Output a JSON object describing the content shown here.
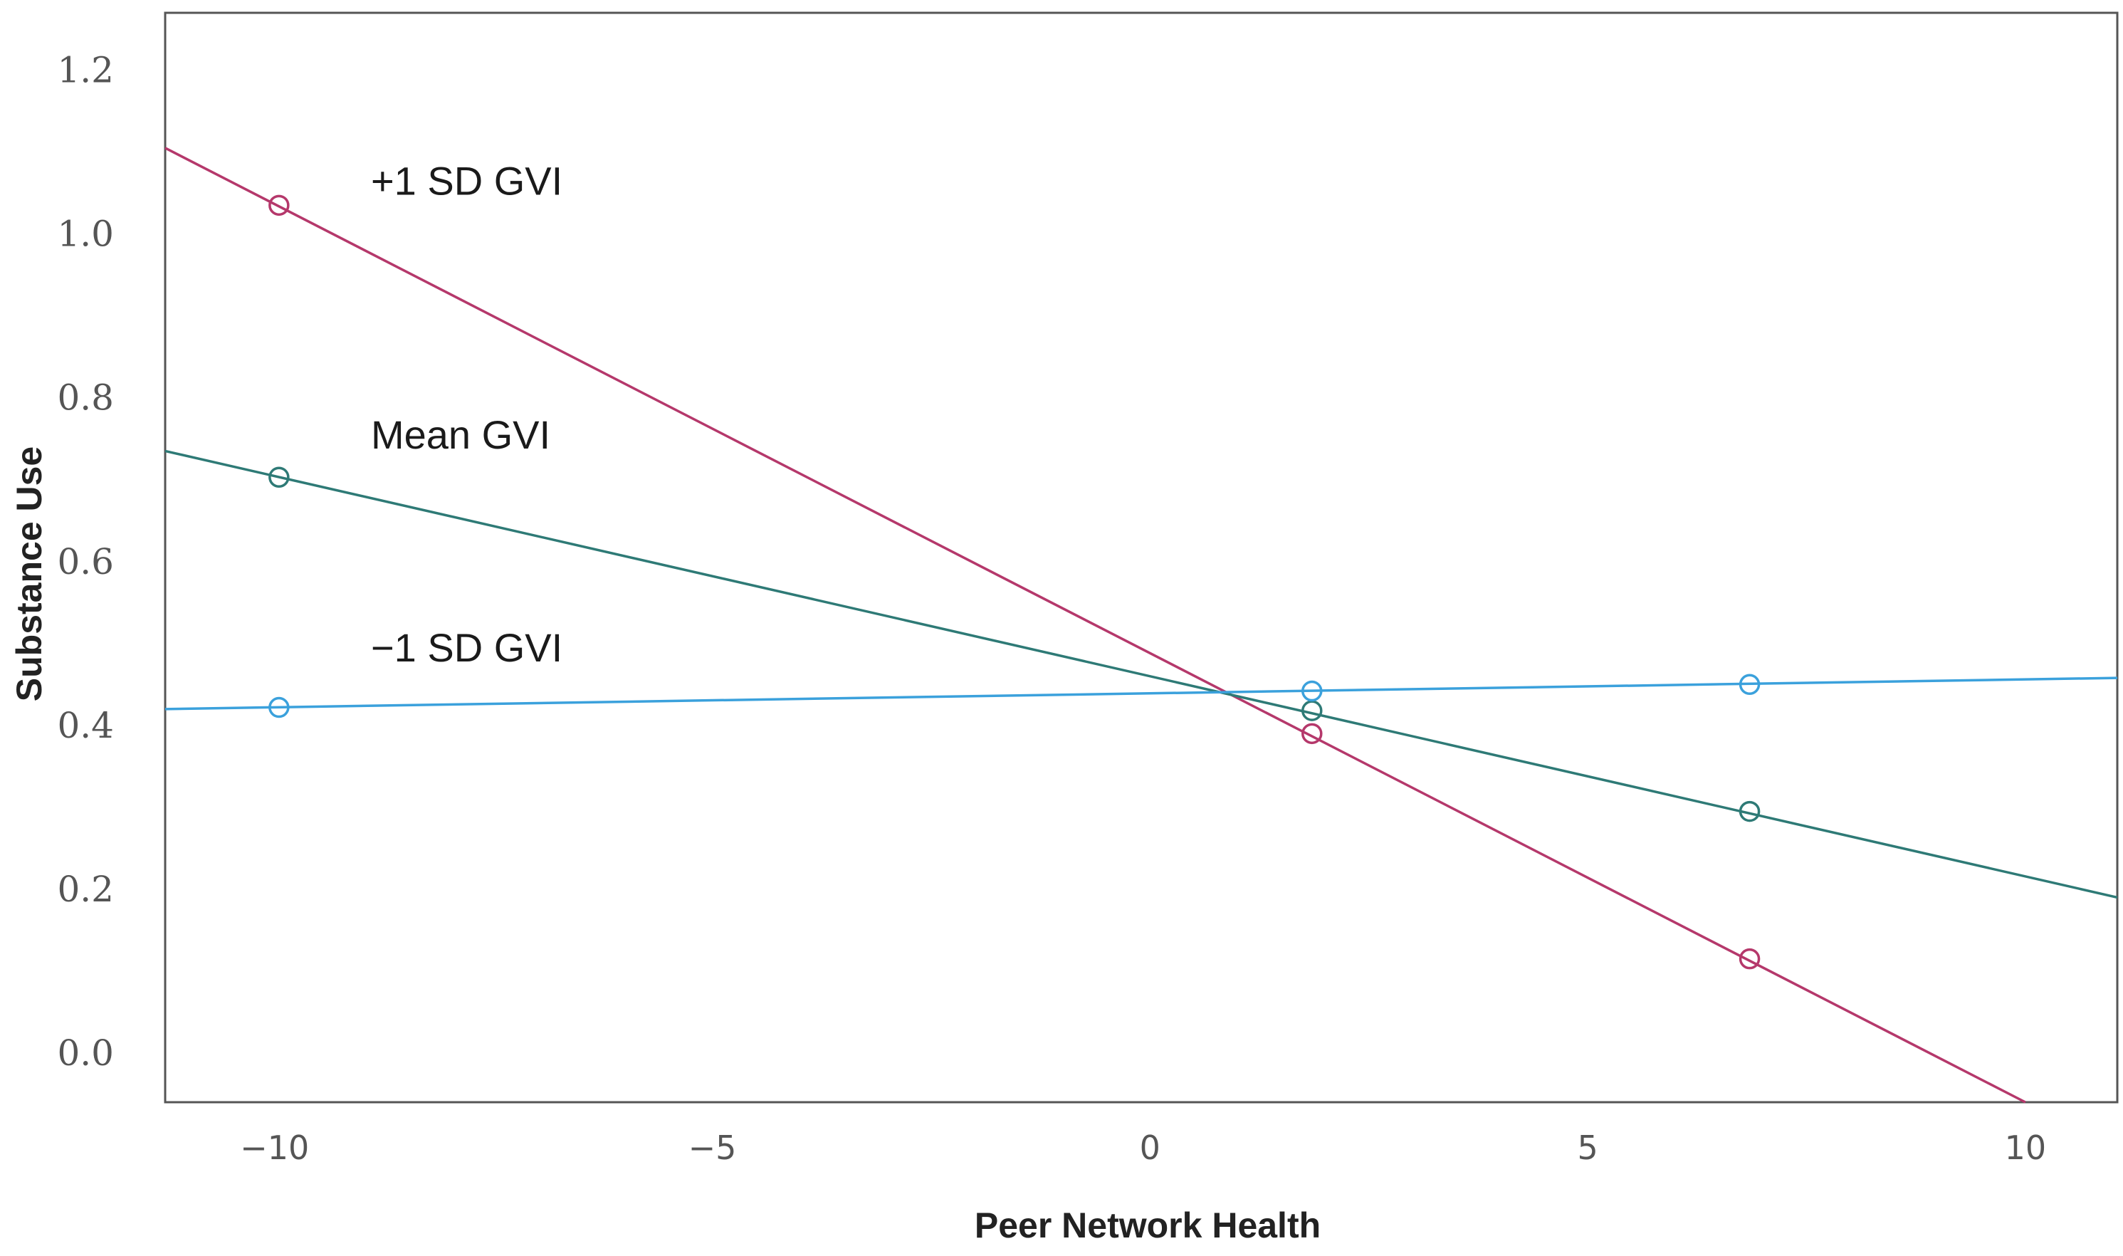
{
  "chart_data": {
    "type": "line",
    "title": "",
    "xlabel": "Peer Network Health",
    "ylabel": "Substance Use",
    "xlim": [
      -11.25,
      11.05
    ],
    "ylim": [
      -0.06,
      1.27
    ],
    "x_ticks": [
      {
        "value": -10,
        "label": "−10"
      },
      {
        "value": -5,
        "label": "−5"
      },
      {
        "value": 0,
        "label": "0"
      },
      {
        "value": 5,
        "label": "5"
      },
      {
        "value": 10,
        "label": "10"
      }
    ],
    "y_ticks": [
      {
        "value": 0.0,
        "label": "0.0"
      },
      {
        "value": 0.2,
        "label": "0.2"
      },
      {
        "value": 0.4,
        "label": "0.4"
      },
      {
        "value": 0.6,
        "label": "0.6"
      },
      {
        "value": 0.8,
        "label": "0.8"
      },
      {
        "value": 1.0,
        "label": "1.0"
      },
      {
        "value": 1.2,
        "label": "1.2"
      }
    ],
    "grid": false,
    "series": [
      {
        "name": "+1 SD GVI",
        "color": "#b5386b",
        "line": {
          "x": [
            -11.25,
            10.0
          ],
          "y": [
            1.105,
            -0.06
          ]
        },
        "points": {
          "x": [
            -9.95,
            1.85,
            6.85
          ],
          "y": [
            1.035,
            0.39,
            0.115
          ]
        },
        "label_at": {
          "x": -8.9,
          "y": 1.048
        }
      },
      {
        "name": "Mean GVI",
        "color": "#2e7a76",
        "line": {
          "x": [
            -11.25,
            11.05
          ],
          "y": [
            0.735,
            0.19
          ]
        },
        "points": {
          "x": [
            -9.95,
            1.85,
            6.85
          ],
          "y": [
            0.703,
            0.418,
            0.295
          ]
        },
        "label_at": {
          "x": -8.9,
          "y": 0.738
        }
      },
      {
        "name": "−1 SD GVI",
        "color": "#3ba1dc",
        "line": {
          "x": [
            -11.25,
            11.05
          ],
          "y": [
            0.42,
            0.458
          ]
        },
        "points": {
          "x": [
            -9.95,
            1.85,
            6.85
          ],
          "y": [
            0.422,
            0.442,
            0.45
          ]
        },
        "label_at": {
          "x": -8.9,
          "y": 0.478
        }
      }
    ]
  }
}
